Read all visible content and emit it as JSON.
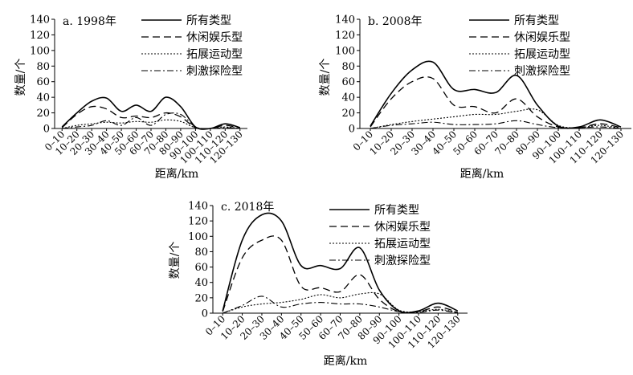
{
  "common": {
    "ylabel": "数量/个",
    "xlabel": "距离/km",
    "categories": [
      "0–10",
      "10–20",
      "20–30",
      "30–40",
      "40–50",
      "50–60",
      "60–70",
      "70–80",
      "80–90",
      "90–100",
      "100–110",
      "110–120",
      "120–130"
    ],
    "ylim": [
      0,
      140
    ],
    "yticks": [
      0,
      20,
      40,
      60,
      80,
      100,
      120,
      140
    ],
    "series_styles": [
      {
        "name": "所有类型",
        "dash": "",
        "width": 1.6
      },
      {
        "name": "休闲娱乐型",
        "dash": "9,5",
        "width": 1.3
      },
      {
        "name": "拓展运动型",
        "dash": "2,2",
        "width": 1.1
      },
      {
        "name": "刺激探险型",
        "dash": "8,3,2,3",
        "width": 1.1
      }
    ]
  },
  "chart_data": [
    {
      "type": "line",
      "title": "a. 1998年",
      "xlabel": "距离/km",
      "ylabel": "数量/个",
      "ylim": [
        0,
        140
      ],
      "categories": [
        "0–10",
        "10–20",
        "20–30",
        "30–40",
        "40–50",
        "50–60",
        "60–70",
        "70–80",
        "80–90",
        "90–100",
        "100–110",
        "110–120",
        "120–130"
      ],
      "series": [
        {
          "name": "所有类型",
          "values": [
            2,
            20,
            35,
            39,
            22,
            30,
            22,
            40,
            28,
            2,
            0,
            6,
            1
          ]
        },
        {
          "name": "休闲娱乐型",
          "values": [
            1,
            18,
            28,
            25,
            14,
            16,
            14,
            20,
            15,
            1,
            0,
            4,
            0
          ]
        },
        {
          "name": "拓展运动型",
          "values": [
            0,
            4,
            6,
            8,
            7,
            9,
            8,
            11,
            9,
            1,
            0,
            2,
            0
          ]
        },
        {
          "name": "刺激探险型",
          "values": [
            0,
            2,
            4,
            10,
            4,
            14,
            4,
            18,
            18,
            2,
            0,
            1,
            0
          ]
        }
      ]
    },
    {
      "type": "line",
      "title": "b. 2008年",
      "xlabel": "距离/km",
      "ylabel": "数量/个",
      "ylim": [
        0,
        140
      ],
      "categories": [
        "0–10",
        "10–20",
        "20–30",
        "30–40",
        "40–50",
        "50–60",
        "60–70",
        "70–80",
        "80–90",
        "90–100",
        "100–110",
        "110–120",
        "120–130"
      ],
      "series": [
        {
          "name": "所有类型",
          "values": [
            3,
            45,
            75,
            85,
            50,
            50,
            46,
            68,
            30,
            3,
            2,
            11,
            2
          ]
        },
        {
          "name": "休闲娱乐型",
          "values": [
            2,
            38,
            60,
            64,
            30,
            28,
            20,
            38,
            15,
            2,
            1,
            6,
            1
          ]
        },
        {
          "name": "拓展运动型",
          "values": [
            0,
            5,
            9,
            12,
            15,
            18,
            18,
            22,
            24,
            4,
            1,
            4,
            0
          ]
        },
        {
          "name": "刺激探险型",
          "values": [
            0,
            4,
            6,
            8,
            5,
            5,
            6,
            10,
            5,
            1,
            1,
            2,
            0
          ]
        }
      ]
    },
    {
      "type": "line",
      "title": "c. 2018年",
      "xlabel": "距离/km",
      "ylabel": "数量/个",
      "ylim": [
        0,
        140
      ],
      "categories": [
        "0–10",
        "10–20",
        "20–30",
        "30–40",
        "40–50",
        "50–60",
        "60–70",
        "70–80",
        "80–90",
        "90–100",
        "100–110",
        "110–120",
        "120–130"
      ],
      "series": [
        {
          "name": "所有类型",
          "values": [
            3,
            95,
            128,
            120,
            62,
            62,
            58,
            85,
            30,
            3,
            3,
            13,
            3
          ]
        },
        {
          "name": "休闲娱乐型",
          "values": [
            2,
            72,
            95,
            95,
            35,
            33,
            28,
            50,
            18,
            2,
            2,
            8,
            1
          ]
        },
        {
          "name": "拓展运动型",
          "values": [
            0,
            8,
            12,
            14,
            18,
            24,
            20,
            25,
            25,
            4,
            2,
            5,
            1
          ]
        },
        {
          "name": "刺激探险型",
          "values": [
            0,
            10,
            22,
            8,
            12,
            14,
            12,
            12,
            8,
            2,
            1,
            4,
            0
          ]
        }
      ]
    }
  ]
}
